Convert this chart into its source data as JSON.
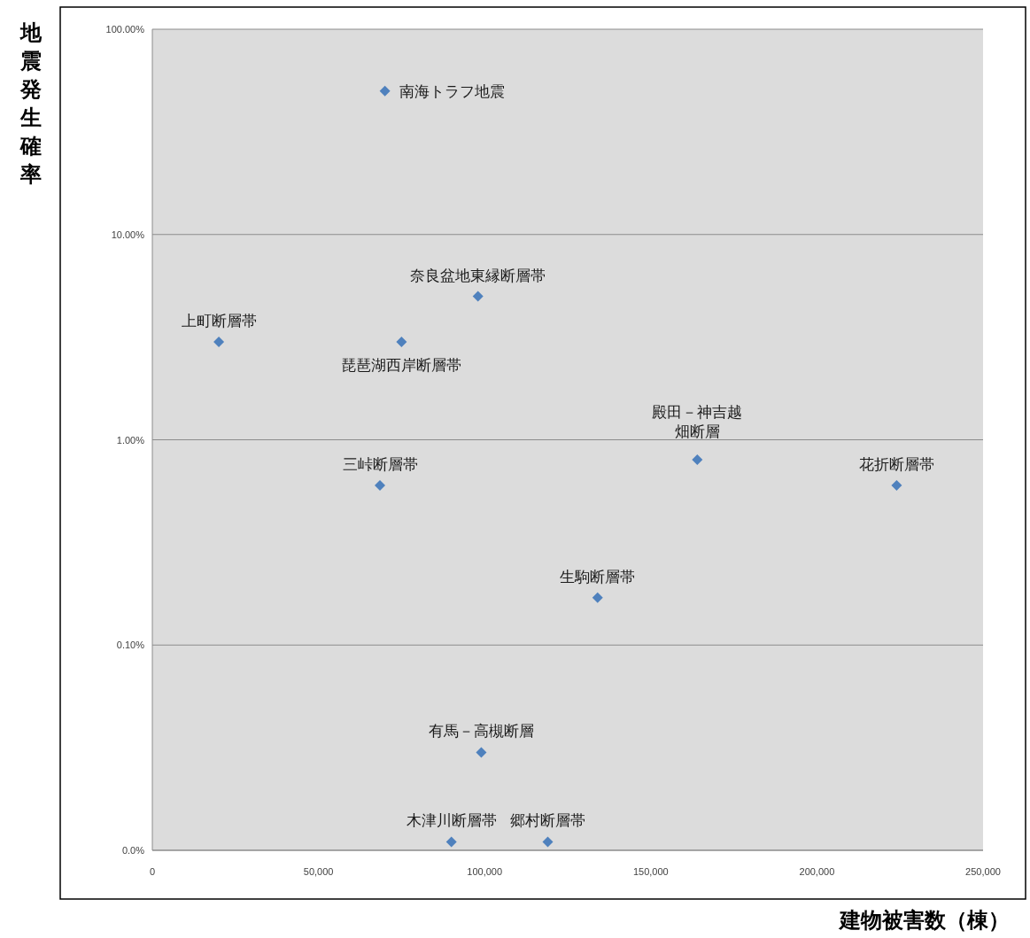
{
  "chart_data": {
    "type": "scatter",
    "xlabel": "建物被害数（棟）",
    "ylabel": "地震発生確率",
    "color": "#4f81bd",
    "marker": "diamond",
    "log": "y",
    "grid": "y",
    "x": [
      70000,
      98000,
      20000,
      75000,
      164000,
      224000,
      68500,
      134000,
      99000,
      90000,
      119000
    ],
    "values": [
      50,
      5,
      3,
      3,
      0.8,
      0.6,
      0.6,
      0.17,
      0.03,
      0.011,
      0.011
    ],
    "xlim": [
      0,
      250000
    ],
    "ylim": [
      0.01,
      100
    ],
    "xticks": [
      0,
      {
        "value": 50000,
        "label": "50,000"
      },
      {
        "value": 100000,
        "label": "100,000"
      },
      {
        "value": 150000,
        "label": "150,000"
      },
      {
        "value": 200000,
        "label": "200,000"
      },
      {
        "value": 250000,
        "label": "250,000"
      }
    ],
    "yticks": [
      {
        "value": 0.01,
        "label": "0.0%"
      },
      {
        "value": 0.1,
        "label": "0.10%"
      },
      {
        "value": 1,
        "label": "1.00%"
      },
      {
        "value": 10,
        "label": "10.00%"
      },
      {
        "value": 100,
        "label": "100.00%"
      }
    ],
    "annotations": [
      {
        "text": "南海トラフ地震",
        "x": 70000,
        "y": 50
      },
      {
        "text": "奈良盆地東縁断層帯",
        "x": 98000,
        "y": 5
      },
      {
        "text": "上町断層帯",
        "x": 20000,
        "y": 3
      },
      {
        "text": "琵琶湖西岸断層帯",
        "x": 75000,
        "y": 3
      },
      {
        "text": "殿田－神吉越畑断層",
        "x": 164000,
        "y": 0.8
      },
      {
        "text": "花折断層帯",
        "x": 224000,
        "y": 0.6
      },
      {
        "text": "三峠断層帯",
        "x": 68500,
        "y": 0.6
      },
      {
        "text": "生駒断層帯",
        "x": 134000,
        "y": 0.17
      },
      {
        "text": "有馬－高槻断層",
        "x": 99000,
        "y": 0.03
      },
      {
        "text": "木津川断層帯",
        "x": 90000,
        "y": 0.011
      },
      {
        "text": "郷村断層帯",
        "x": 119000,
        "y": 0.011
      }
    ]
  }
}
